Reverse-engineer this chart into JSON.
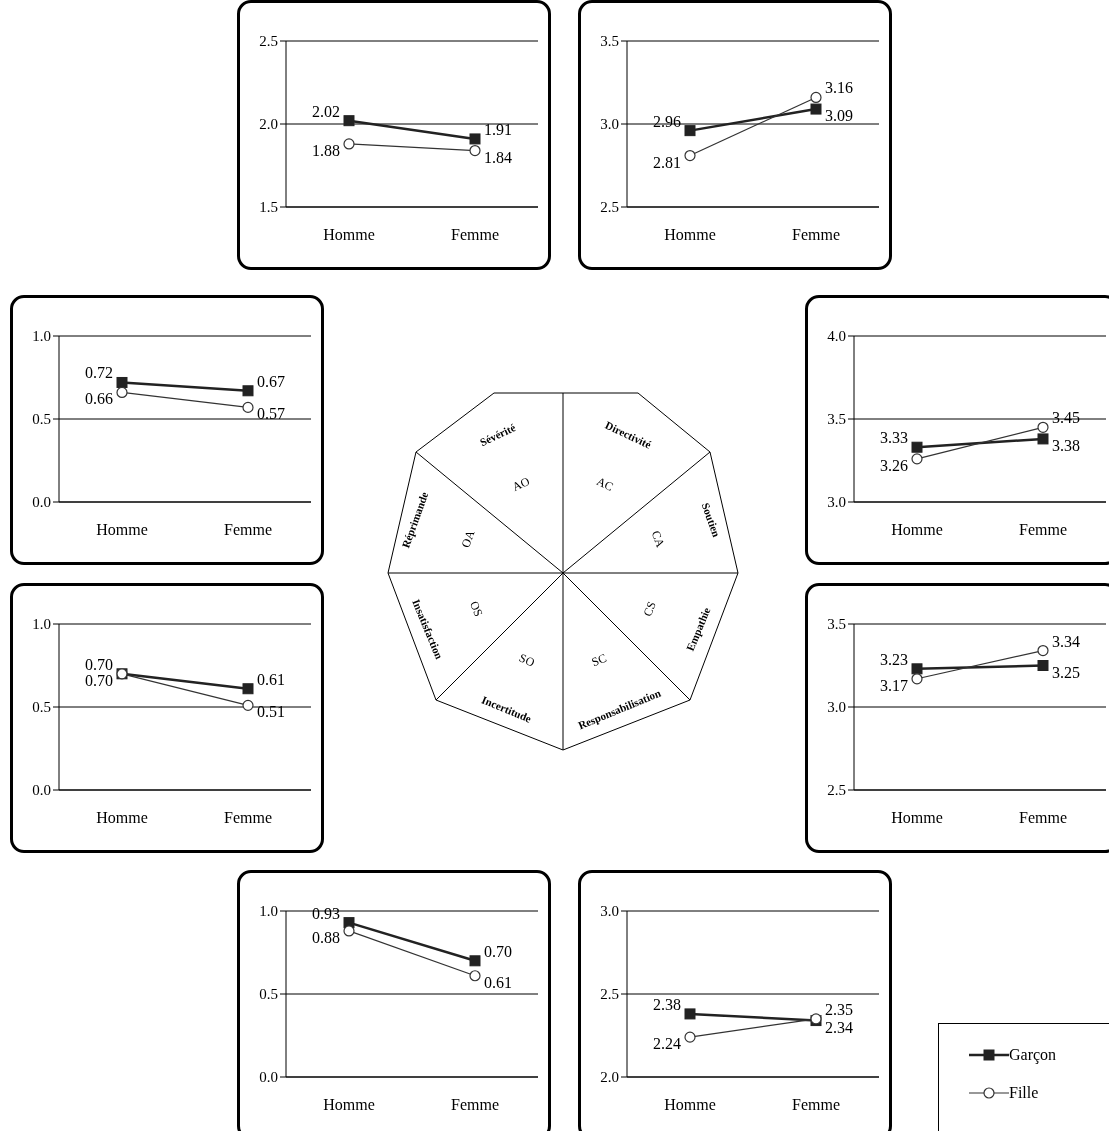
{
  "chart_data": [
    {
      "type": "line",
      "categories": [
        "Homme",
        "Femme"
      ],
      "ylim": [
        1.5,
        2.5
      ],
      "yticks": [
        {
          "value": 1.5,
          "label": "1.5"
        },
        {
          "value": 2,
          "label": "2.0"
        },
        {
          "value": 2.5,
          "label": "2.5"
        }
      ],
      "grid": "y",
      "series": [
        {
          "color": "#222222",
          "marker": "square",
          "values": [
            2.02,
            1.91
          ],
          "value_labels": [
            "2.02",
            "1.91"
          ]
        },
        {
          "color": "#333333",
          "marker": "circle",
          "values": [
            1.88,
            1.84
          ],
          "value_labels": [
            "1.88",
            "1.84"
          ]
        }
      ]
    },
    {
      "type": "line",
      "categories": [
        "Homme",
        "Femme"
      ],
      "ylim": [
        2.5,
        3.5
      ],
      "yticks": [
        {
          "value": 2.5,
          "label": "2.5"
        },
        {
          "value": 3,
          "label": "3.0"
        },
        {
          "value": 3.5,
          "label": "3.5"
        }
      ],
      "grid": "y",
      "series": [
        {
          "color": "#222222",
          "marker": "square",
          "values": [
            2.96,
            3.09
          ],
          "value_labels": [
            "2.96",
            "3.09"
          ]
        },
        {
          "color": "#333333",
          "marker": "circle",
          "values": [
            2.81,
            3.16
          ],
          "value_labels": [
            "2.81",
            "3.16"
          ]
        }
      ]
    },
    {
      "type": "line",
      "categories": [
        "Homme",
        "Femme"
      ],
      "ylim": [
        0,
        1
      ],
      "yticks": [
        {
          "value": 0,
          "label": "0.0"
        },
        {
          "value": 0.5,
          "label": "0.5"
        },
        {
          "value": 1,
          "label": "1.0"
        }
      ],
      "grid": "y",
      "series": [
        {
          "color": "#222222",
          "marker": "square",
          "values": [
            0.72,
            0.67
          ],
          "value_labels": [
            "0.72",
            "0.67"
          ]
        },
        {
          "color": "#333333",
          "marker": "circle",
          "values": [
            0.66,
            0.57
          ],
          "value_labels": [
            "0.66",
            "0.57"
          ]
        }
      ]
    },
    {
      "type": "line",
      "categories": [
        "Homme",
        "Femme"
      ],
      "ylim": [
        3,
        4
      ],
      "yticks": [
        {
          "value": 3,
          "label": "3.0"
        },
        {
          "value": 3.5,
          "label": "3.5"
        },
        {
          "value": 4,
          "label": "4.0"
        }
      ],
      "grid": "y",
      "series": [
        {
          "color": "#222222",
          "marker": "square",
          "values": [
            3.33,
            3.38
          ],
          "value_labels": [
            "3.33",
            "3.38"
          ]
        },
        {
          "color": "#333333",
          "marker": "circle",
          "values": [
            3.26,
            3.45
          ],
          "value_labels": [
            "3.26",
            "3.45"
          ]
        }
      ]
    },
    {
      "type": "line",
      "categories": [
        "Homme",
        "Femme"
      ],
      "ylim": [
        0,
        1
      ],
      "yticks": [
        {
          "value": 0,
          "label": "0.0"
        },
        {
          "value": 0.5,
          "label": "0.5"
        },
        {
          "value": 1,
          "label": "1.0"
        }
      ],
      "grid": "y",
      "series": [
        {
          "color": "#222222",
          "marker": "square",
          "values": [
            0.7,
            0.61
          ],
          "value_labels": [
            "0.70",
            "0.61"
          ]
        },
        {
          "color": "#333333",
          "marker": "circle",
          "values": [
            0.7,
            0.51
          ],
          "value_labels": [
            "0.70",
            "0.51"
          ]
        }
      ]
    },
    {
      "type": "line",
      "categories": [
        "Homme",
        "Femme"
      ],
      "ylim": [
        2.5,
        3.5
      ],
      "yticks": [
        {
          "value": 2.5,
          "label": "2.5"
        },
        {
          "value": 3,
          "label": "3.0"
        },
        {
          "value": 3.5,
          "label": "3.5"
        }
      ],
      "grid": "y",
      "series": [
        {
          "color": "#222222",
          "marker": "square",
          "values": [
            3.23,
            3.25
          ],
          "value_labels": [
            "3.23",
            "3.25"
          ]
        },
        {
          "color": "#333333",
          "marker": "circle",
          "values": [
            3.17,
            3.34
          ],
          "value_labels": [
            "3.17",
            "3.34"
          ]
        }
      ]
    },
    {
      "type": "line",
      "categories": [
        "Homme",
        "Femme"
      ],
      "ylim": [
        0,
        1
      ],
      "yticks": [
        {
          "value": 0,
          "label": "0.0"
        },
        {
          "value": 0.5,
          "label": "0.5"
        },
        {
          "value": 1,
          "label": "1.0"
        }
      ],
      "grid": "y",
      "series": [
        {
          "color": "#222222",
          "marker": "square",
          "values": [
            0.93,
            0.7
          ],
          "value_labels": [
            "0.93",
            "0.70"
          ]
        },
        {
          "color": "#333333",
          "marker": "circle",
          "values": [
            0.88,
            0.61
          ],
          "value_labels": [
            "0.88",
            "0.61"
          ]
        }
      ]
    },
    {
      "type": "line",
      "categories": [
        "Homme",
        "Femme"
      ],
      "ylim": [
        2,
        3
      ],
      "yticks": [
        {
          "value": 2,
          "label": "2.0"
        },
        {
          "value": 2.5,
          "label": "2.5"
        },
        {
          "value": 3,
          "label": "3.0"
        }
      ],
      "grid": "y",
      "legend": "right",
      "series": [
        {
          "name": "Garçon",
          "color": "#222222",
          "marker": "square",
          "values": [
            2.38,
            2.34
          ],
          "value_labels": [
            "2.38",
            "2.34"
          ]
        },
        {
          "name": "Fille",
          "color": "#333333",
          "marker": "circle",
          "values": [
            2.24,
            2.35
          ],
          "value_labels": [
            "2.24",
            "2.35"
          ]
        }
      ]
    },
    {
      "type": "other",
      "annotations": [
        "Directivité",
        "Soutien",
        "Empathie",
        "Responsabilisation",
        "Incertitude",
        "Insatisfaction",
        "Réprimande",
        "Sévérité",
        "AC",
        "CA",
        "CS",
        "SC",
        "SO",
        "OS",
        "OA",
        "AO"
      ]
    }
  ]
}
